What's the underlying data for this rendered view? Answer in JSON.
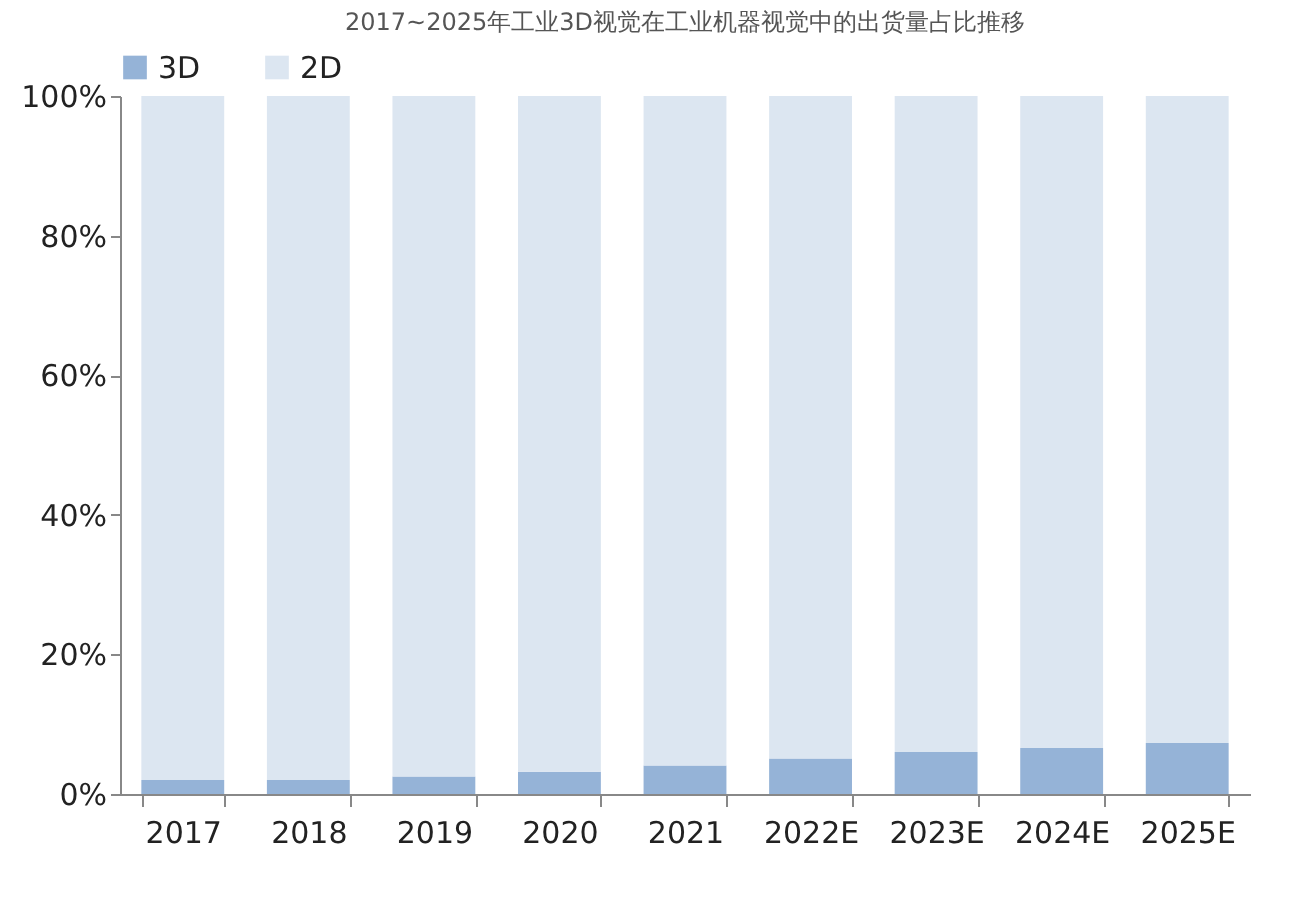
{
  "chart_data": {
    "type": "bar",
    "title": "2017~2025年工业3D视觉在工业机器视觉中的出货量占比推移",
    "categories": [
      "2017",
      "2018",
      "2019",
      "2020",
      "2021",
      "2022E",
      "2023E",
      "2024E",
      "2025E"
    ],
    "stacked": true,
    "series": [
      {
        "name": "3D",
        "color": "#95b3d7",
        "values": [
          2,
          2,
          2.5,
          3.2,
          4.1,
          5.1,
          6,
          6.6,
          7.3
        ]
      },
      {
        "name": "2D",
        "color": "#dce6f1",
        "values": [
          98,
          98,
          97.5,
          96.8,
          95.9,
          94.9,
          94,
          93.4,
          92.7
        ]
      }
    ],
    "ylim": [
      0,
      100
    ],
    "yticks": [
      {
        "value": 0,
        "label": "0%"
      },
      {
        "value": 20,
        "label": "20%"
      },
      {
        "value": 40,
        "label": "40%"
      },
      {
        "value": 60,
        "label": "60%"
      },
      {
        "value": 80,
        "label": "80%"
      },
      {
        "value": 100,
        "label": "100%"
      }
    ],
    "grid": false,
    "legend": "top left"
  }
}
